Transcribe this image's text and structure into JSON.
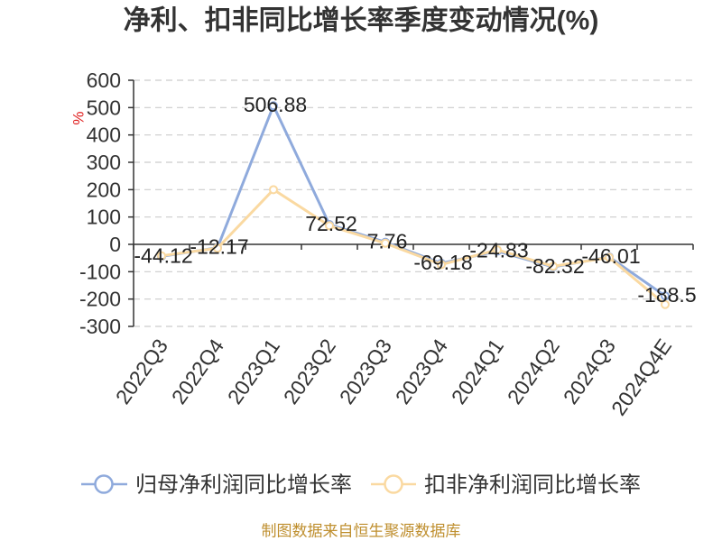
{
  "chart_data": {
    "type": "line",
    "title": "净利、扣非同比增长率季度变动情况(%)",
    "xlabel": "",
    "ylabel": "%",
    "categories": [
      "2022Q3",
      "2022Q4",
      "2023Q1",
      "2023Q2",
      "2023Q3",
      "2023Q4",
      "2024Q1",
      "2024Q2",
      "2024Q3",
      "2024Q4E"
    ],
    "ylim": [
      -300,
      600
    ],
    "yticks": [
      600,
      500,
      400,
      300,
      200,
      100,
      0,
      -100,
      -200,
      -300
    ],
    "grid": "horizontal dashed",
    "legend_position": "bottom",
    "series": [
      {
        "name": "归母净利润同比增长率",
        "color": "#8FAADC",
        "marker": "hollow-circle",
        "show_labels": true,
        "values": [
          -44.12,
          -12.17,
          506.88,
          72.52,
          7.76,
          -69.18,
          -24.83,
          -82.32,
          -46.01,
          -188.5
        ]
      },
      {
        "name": "扣非净利润同比增长率",
        "color": "#FAD9A1",
        "marker": "hollow-circle",
        "show_labels": false,
        "values": [
          -42,
          -14,
          200,
          68,
          4,
          -74,
          -20,
          -80,
          -48,
          -220
        ]
      }
    ]
  },
  "colors": {
    "unit_label": "#E02020",
    "source_note": "#BF8F2F",
    "axis": "#333333",
    "grid": "#CCCCCC"
  },
  "footer": {
    "source": "制图数据来自恒生聚源数据库"
  }
}
